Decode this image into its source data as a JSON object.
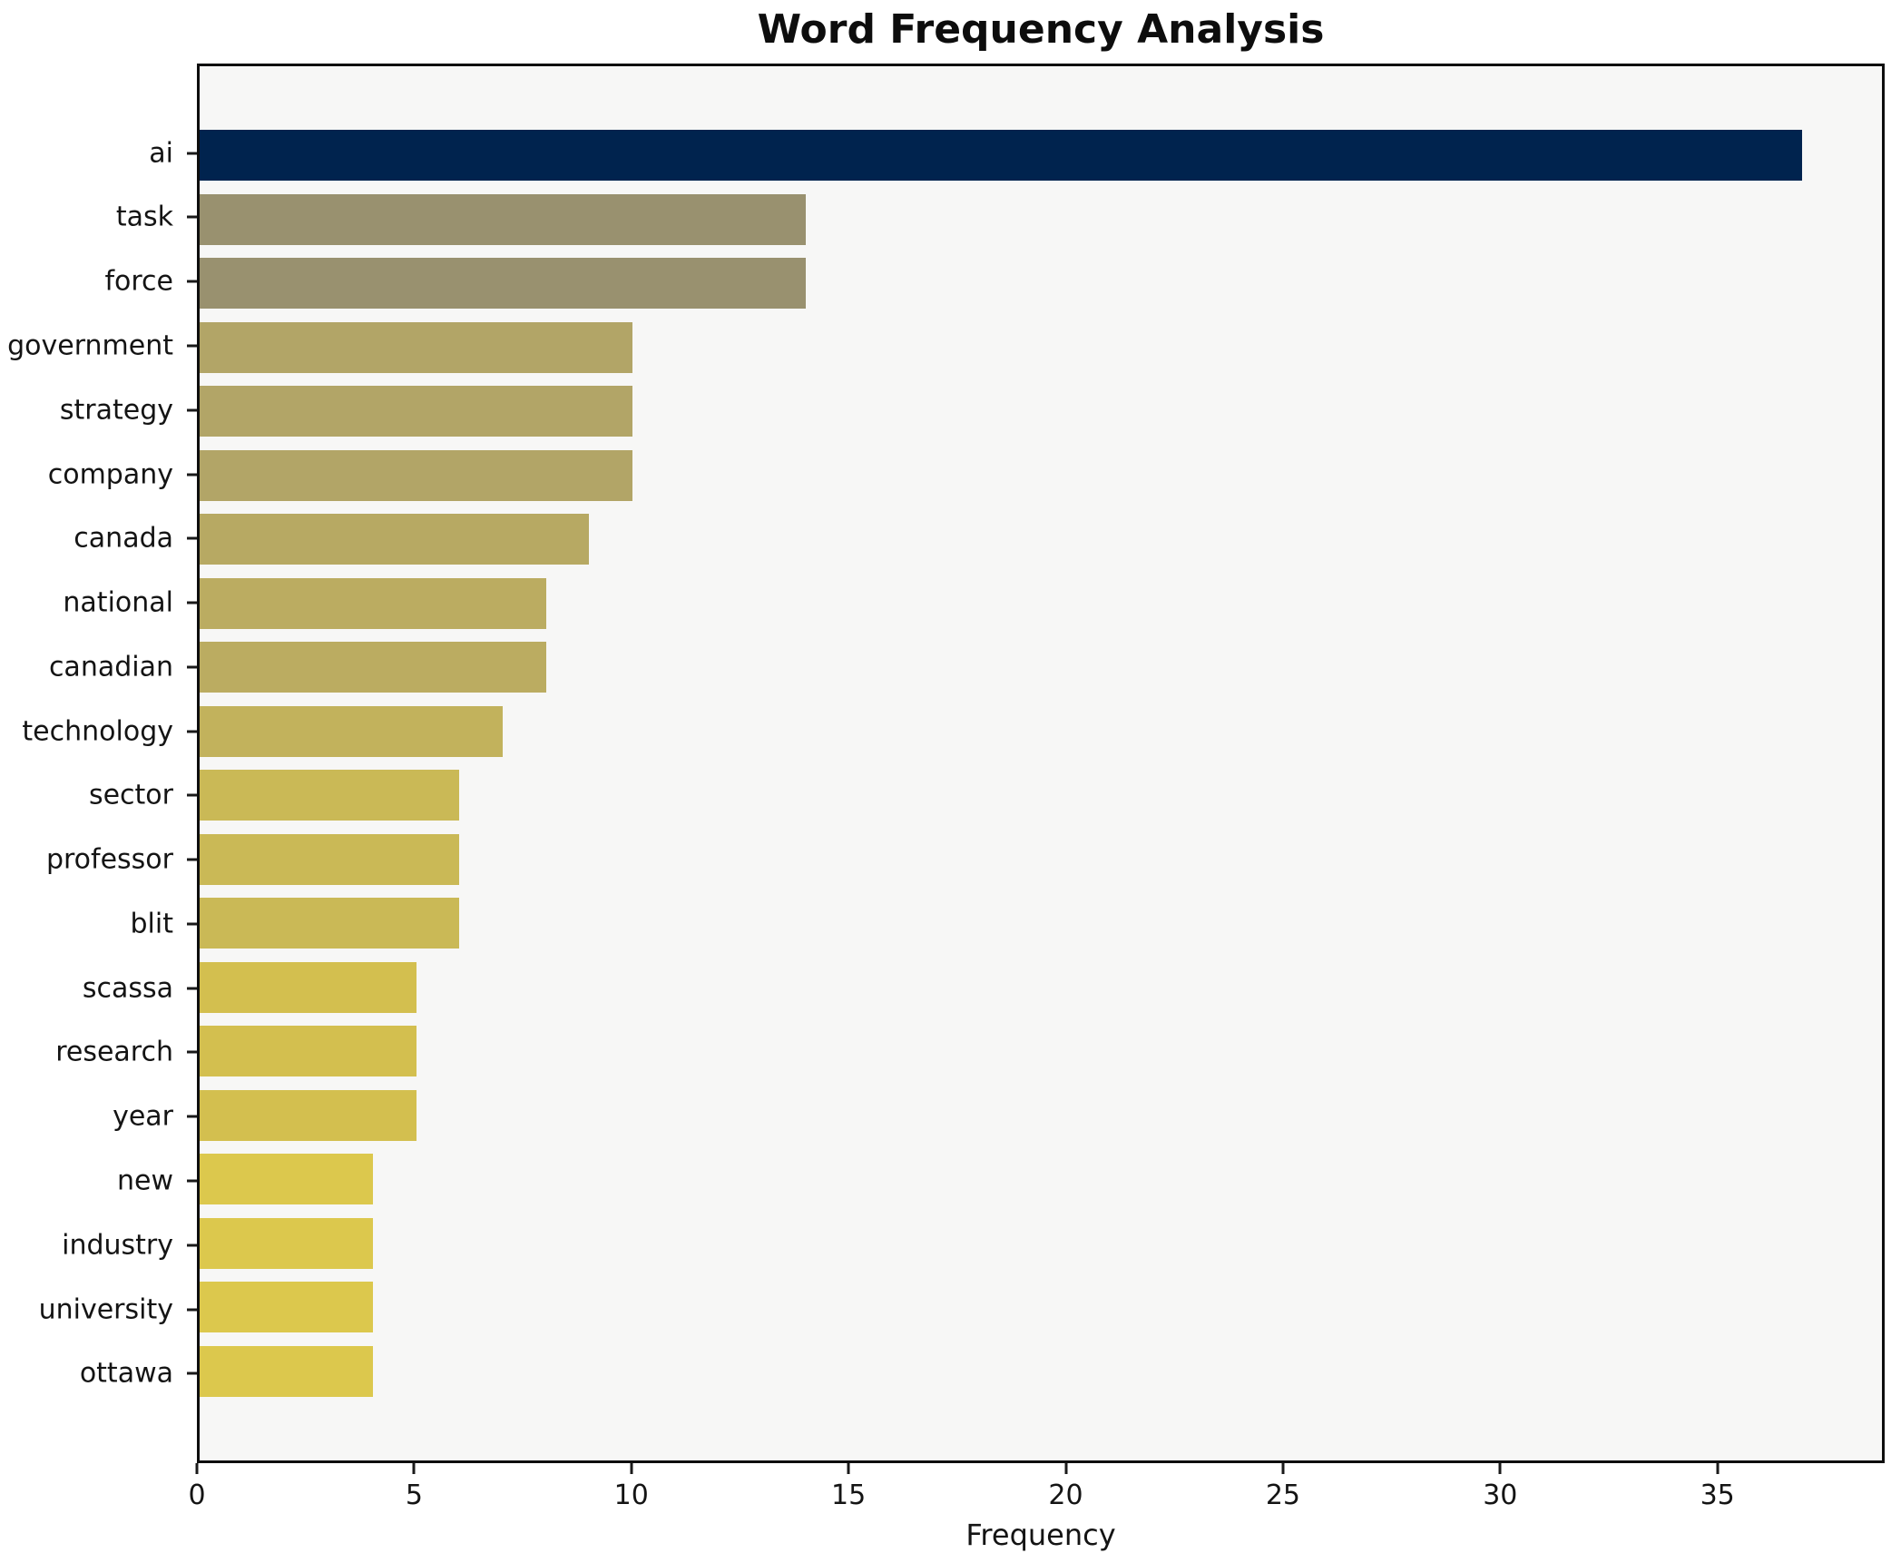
{
  "chart_data": {
    "type": "bar",
    "orientation": "horizontal",
    "title": "Word Frequency Analysis",
    "xlabel": "Frequency",
    "ylabel": "",
    "categories": [
      "ai",
      "task",
      "force",
      "government",
      "strategy",
      "company",
      "canada",
      "national",
      "canadian",
      "technology",
      "sector",
      "professor",
      "blit",
      "scassa",
      "research",
      "year",
      "new",
      "industry",
      "university",
      "ottawa"
    ],
    "values": [
      37,
      14,
      14,
      10,
      10,
      10,
      9,
      8,
      8,
      7,
      6,
      6,
      6,
      5,
      5,
      5,
      4,
      4,
      4,
      4
    ],
    "bar_colors": [
      "#00234E",
      "#99916F",
      "#99916F",
      "#B2A567",
      "#B2A567",
      "#B2A567",
      "#B7A963",
      "#BBAC61",
      "#BBAC61",
      "#C2B25C",
      "#CAB956",
      "#CAB956",
      "#CAB956",
      "#D3BF4F",
      "#D3BF4F",
      "#D3BF4F",
      "#DCC84D",
      "#DCC84D",
      "#DCC84D",
      "#DCC84D"
    ],
    "xlim": [
      0,
      38.85
    ],
    "xticks": [
      0,
      5,
      10,
      15,
      20,
      25,
      30,
      35
    ],
    "grid": false,
    "legend": "none",
    "plot_background": "#f7f7f6",
    "figure_background": "#ffffff",
    "spine_color": "#0e0e0e"
  }
}
